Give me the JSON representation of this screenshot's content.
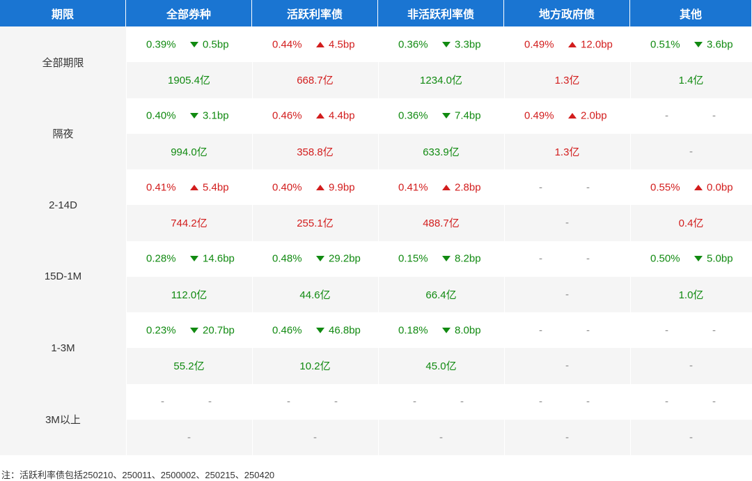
{
  "colors": {
    "header_bg": "#1a75d2",
    "up": "#d21d1d",
    "down": "#118a11",
    "row_alt_bg": "#f5f5f5"
  },
  "header": [
    "期限",
    "全部券种",
    "活跃利率债",
    "非活跃利率债",
    "地方政府债",
    "其他"
  ],
  "rows": [
    {
      "period": "全部期限",
      "cells": [
        {
          "rate": "0.39%",
          "dir": "down",
          "bp": "0.5bp",
          "vol": "1905.4亿"
        },
        {
          "rate": "0.44%",
          "dir": "up",
          "bp": "4.5bp",
          "vol": "668.7亿"
        },
        {
          "rate": "0.36%",
          "dir": "down",
          "bp": "3.3bp",
          "vol": "1234.0亿"
        },
        {
          "rate": "0.49%",
          "dir": "up",
          "bp": "12.0bp",
          "vol": "1.3亿"
        },
        {
          "rate": "0.51%",
          "dir": "down",
          "bp": "3.6bp",
          "vol": "1.4亿"
        }
      ]
    },
    {
      "period": "隔夜",
      "cells": [
        {
          "rate": "0.40%",
          "dir": "down",
          "bp": "3.1bp",
          "vol": "994.0亿"
        },
        {
          "rate": "0.46%",
          "dir": "up",
          "bp": "4.4bp",
          "vol": "358.8亿"
        },
        {
          "rate": "0.36%",
          "dir": "down",
          "bp": "7.4bp",
          "vol": "633.9亿"
        },
        {
          "rate": "0.49%",
          "dir": "up",
          "bp": "2.0bp",
          "vol": "1.3亿"
        },
        {
          "rate": "-",
          "dir": "none",
          "bp": "-",
          "vol": "-"
        }
      ]
    },
    {
      "period": "2-14D",
      "cells": [
        {
          "rate": "0.41%",
          "dir": "up",
          "bp": "5.4bp",
          "vol": "744.2亿"
        },
        {
          "rate": "0.40%",
          "dir": "up",
          "bp": "9.9bp",
          "vol": "255.1亿"
        },
        {
          "rate": "0.41%",
          "dir": "up",
          "bp": "2.8bp",
          "vol": "488.7亿"
        },
        {
          "rate": "-",
          "dir": "none",
          "bp": "-",
          "vol": "-"
        },
        {
          "rate": "0.55%",
          "dir": "up",
          "bp": "0.0bp",
          "vol": "0.4亿"
        }
      ]
    },
    {
      "period": "15D-1M",
      "cells": [
        {
          "rate": "0.28%",
          "dir": "down",
          "bp": "14.6bp",
          "vol": "112.0亿"
        },
        {
          "rate": "0.48%",
          "dir": "down",
          "bp": "29.2bp",
          "vol": "44.6亿"
        },
        {
          "rate": "0.15%",
          "dir": "down",
          "bp": "8.2bp",
          "vol": "66.4亿"
        },
        {
          "rate": "-",
          "dir": "none",
          "bp": "-",
          "vol": "-"
        },
        {
          "rate": "0.50%",
          "dir": "down",
          "bp": "5.0bp",
          "vol": "1.0亿"
        }
      ]
    },
    {
      "period": "1-3M",
      "cells": [
        {
          "rate": "0.23%",
          "dir": "down",
          "bp": "20.7bp",
          "vol": "55.2亿"
        },
        {
          "rate": "0.46%",
          "dir": "down",
          "bp": "46.8bp",
          "vol": "10.2亿"
        },
        {
          "rate": "0.18%",
          "dir": "down",
          "bp": "8.0bp",
          "vol": "45.0亿"
        },
        {
          "rate": "-",
          "dir": "none",
          "bp": "-",
          "vol": "-"
        },
        {
          "rate": "-",
          "dir": "none",
          "bp": "-",
          "vol": "-"
        }
      ]
    },
    {
      "period": "3M以上",
      "cells": [
        {
          "rate": "-",
          "dir": "none",
          "bp": "-",
          "vol": "-"
        },
        {
          "rate": "-",
          "dir": "none",
          "bp": "-",
          "vol": "-"
        },
        {
          "rate": "-",
          "dir": "none",
          "bp": "-",
          "vol": "-"
        },
        {
          "rate": "-",
          "dir": "none",
          "bp": "-",
          "vol": "-"
        },
        {
          "rate": "-",
          "dir": "none",
          "bp": "-",
          "vol": "-"
        }
      ]
    }
  ],
  "note": "注：活跃利率债包括250210、250011、2500002、250215、250420"
}
